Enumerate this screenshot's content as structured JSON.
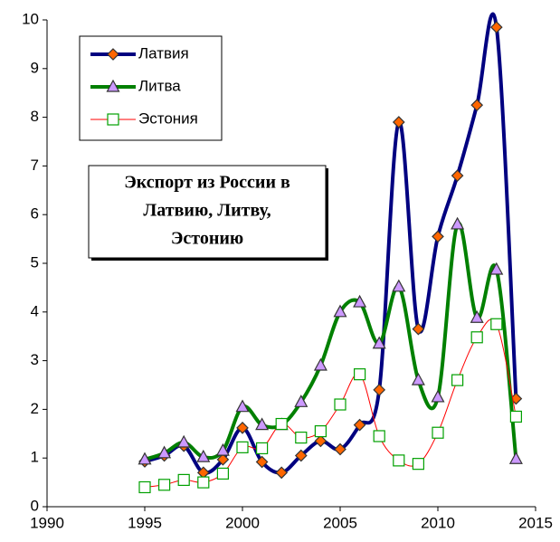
{
  "chart_data": {
    "type": "line",
    "title": [
      "Экспорт из России в",
      "Латвию, Литву,",
      "Эстонию"
    ],
    "x": [
      1995,
      1996,
      1997,
      1998,
      1999,
      2000,
      2001,
      2002,
      2003,
      2004,
      2005,
      2006,
      2007,
      2008,
      2009,
      2010,
      2011,
      2012,
      2013,
      2014
    ],
    "series": [
      {
        "name": "Латвия",
        "color": "#000080",
        "marker": "diamond",
        "marker_color": "#ff6600",
        "values": [
          0.93,
          1.05,
          1.25,
          0.7,
          0.97,
          1.62,
          0.92,
          0.7,
          1.05,
          1.35,
          1.18,
          1.68,
          2.4,
          7.9,
          3.65,
          5.55,
          6.8,
          8.25,
          9.85,
          2.22
        ]
      },
      {
        "name": "Литва",
        "color": "#008000",
        "marker": "triangle",
        "marker_color": "#cc99ff",
        "values": [
          0.97,
          1.1,
          1.32,
          1.02,
          1.15,
          2.05,
          1.68,
          1.68,
          2.15,
          2.9,
          4.0,
          4.2,
          3.35,
          4.52,
          2.6,
          2.25,
          5.8,
          3.88,
          4.87,
          0.98
        ]
      },
      {
        "name": "Эстония",
        "color": "#ff0000",
        "marker": "square",
        "marker_color": "#ffffff",
        "values": [
          0.4,
          0.45,
          0.55,
          0.5,
          0.68,
          1.22,
          1.2,
          1.7,
          1.42,
          1.55,
          2.1,
          2.72,
          1.45,
          0.95,
          0.88,
          1.52,
          2.6,
          3.48,
          3.75,
          1.85
        ]
      }
    ],
    "xlim": [
      1990,
      2015
    ],
    "xticks": [
      1990,
      1995,
      2000,
      2005,
      2010,
      2015
    ],
    "ylim": [
      0,
      10
    ],
    "yticks": [
      0,
      1,
      2,
      3,
      4,
      5,
      6,
      7,
      8,
      9,
      10
    ],
    "smooth": true,
    "grid": false
  }
}
